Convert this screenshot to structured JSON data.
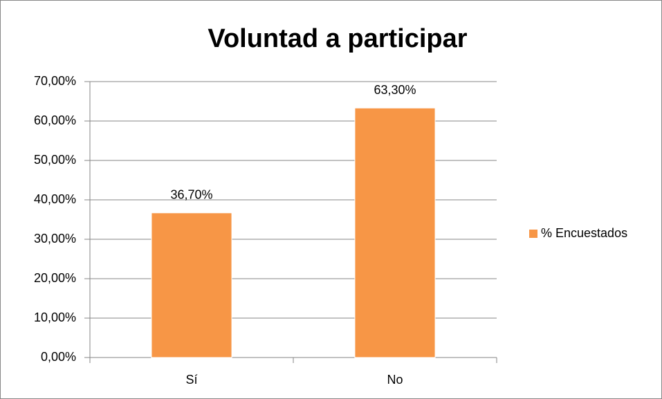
{
  "chart_data": {
    "type": "bar",
    "title": "Voluntad a participar",
    "categories": [
      "Sí",
      "No"
    ],
    "series": [
      {
        "name": "% Encuestados",
        "color": "#f79646",
        "values": [
          36.7,
          63.3
        ],
        "value_labels": [
          "36,70%",
          "63,30%"
        ]
      }
    ],
    "ylim": [
      0,
      70
    ],
    "yticks": [
      {
        "value": 0,
        "label": "0,00%"
      },
      {
        "value": 10,
        "label": "10,00%"
      },
      {
        "value": 20,
        "label": "20,00%"
      },
      {
        "value": 30,
        "label": "30,00%"
      },
      {
        "value": 40,
        "label": "40,00%"
      },
      {
        "value": 50,
        "label": "50,00%"
      },
      {
        "value": 60,
        "label": "60,00%"
      },
      {
        "value": 70,
        "label": "70,00%"
      }
    ],
    "grid": true,
    "legend": "right"
  }
}
